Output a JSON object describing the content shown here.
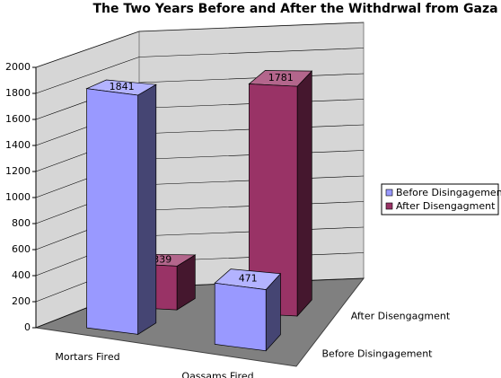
{
  "chart_data": {
    "type": "bar3d",
    "title": "The Two Years Before and After the Withdrwal from Gaza",
    "categories": [
      "Mortars Fired",
      "Qassams Fired"
    ],
    "series": [
      {
        "name": "Before Disingagement",
        "color": "#9999ff",
        "values": [
          1841,
          471
        ]
      },
      {
        "name": "After Disengagment",
        "color": "#993366",
        "values": [
          339,
          1781
        ]
      }
    ],
    "ylim": [
      0,
      2000
    ],
    "yticks": [
      0,
      200,
      400,
      600,
      800,
      1000,
      1200,
      1400,
      1600,
      1800,
      2000
    ],
    "grid": true,
    "legend": "right"
  }
}
